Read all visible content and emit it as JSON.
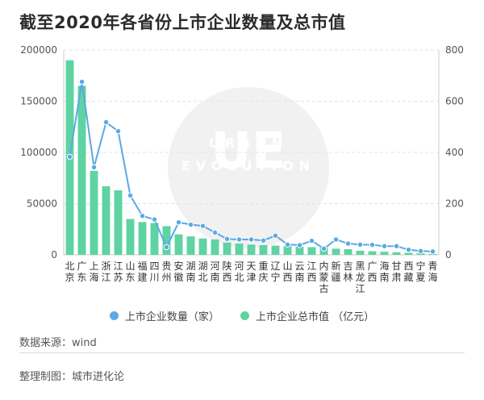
{
  "title": "截至2020年各省份上市企业数量及总市值",
  "source": "数据来源：wind",
  "credit": "整理制图：城市进化论",
  "watermark": {
    "logo": "UE",
    "line1": "URBAN",
    "line2": "EVOLUTION"
  },
  "colors": {
    "bar": "#5fd3a2",
    "line": "#5aa9e6",
    "grid": "#e3e3e3",
    "axis": "#cccccc",
    "text": "#555555"
  },
  "chart_data": {
    "type": "bar",
    "categories": [
      "北京",
      "广东",
      "上海",
      "浙江",
      "江苏",
      "山东",
      "福建",
      "四川",
      "贵州",
      "安徽",
      "湖南",
      "湖北",
      "河南",
      "陕西",
      "河北",
      "天津",
      "重庆",
      "辽宁",
      "山西",
      "云南",
      "江西",
      "内蒙古",
      "新疆",
      "吉林",
      "黑龙江",
      "广西",
      "海南",
      "甘肃",
      "西藏",
      "宁夏",
      "青海"
    ],
    "series": [
      {
        "name": "上市企业总市值 （亿元）",
        "axis": "left",
        "type": "bar",
        "values": [
          190000,
          165000,
          82000,
          67000,
          63000,
          35000,
          32000,
          31000,
          28000,
          20000,
          18000,
          16000,
          15000,
          12000,
          11000,
          10000,
          9500,
          9000,
          8500,
          8000,
          7500,
          7000,
          6000,
          5500,
          4000,
          3500,
          3000,
          2500,
          2000,
          1500,
          1000
        ]
      },
      {
        "name": "上市企业数量（家）",
        "axis": "right",
        "type": "line",
        "values": [
          383,
          676,
          342,
          518,
          483,
          232,
          152,
          138,
          30,
          127,
          118,
          113,
          87,
          62,
          60,
          60,
          56,
          75,
          40,
          38,
          55,
          24,
          60,
          44,
          40,
          39,
          34,
          34,
          20,
          15,
          13
        ]
      }
    ],
    "y_left": {
      "min": 0,
      "max": 200000,
      "ticks": [
        0,
        50000,
        100000,
        150000,
        200000
      ]
    },
    "y_right": {
      "min": 0,
      "max": 800,
      "ticks": [
        0,
        200,
        400,
        600,
        800
      ]
    },
    "legend_position": "bottom",
    "grid": true
  }
}
